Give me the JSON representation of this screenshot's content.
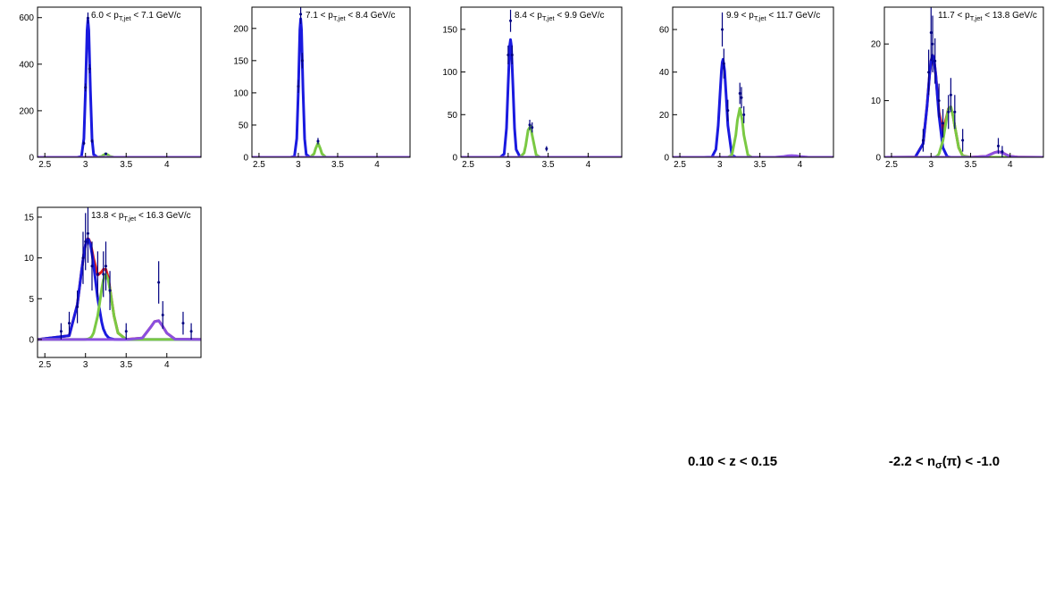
{
  "chart_data": [
    {
      "type": "line",
      "title": [
        "6.0 < p",
        "T,jet",
        " < 7.1 GeV/c"
      ],
      "x": [
        2.41,
        2.8,
        2.9,
        2.95,
        2.98,
        3.0,
        3.02,
        3.03,
        3.04,
        3.06,
        3.08,
        3.1,
        3.15,
        3.2,
        3.22,
        3.25,
        3.28,
        3.3,
        3.35,
        3.4,
        3.5,
        3.7,
        3.8,
        3.85,
        3.9,
        3.95,
        4.0,
        4.1,
        4.42
      ],
      "xlim": [
        2.41,
        4.42
      ],
      "xticks": [
        2.5,
        3,
        3.5,
        4
      ],
      "ylim": [
        0,
        645
      ],
      "yticks": [
        0,
        200,
        400,
        600
      ],
      "series": [
        {
          "color": "#1a1adf",
          "values": [
            0,
            0,
            0,
            3.5,
            80,
            287,
            545,
            590,
            545,
            287,
            80,
            12,
            0,
            0,
            0,
            0,
            0,
            0,
            0,
            0,
            0,
            0,
            0,
            0,
            0,
            0,
            0,
            0,
            0
          ]
        },
        {
          "color": "#7ac943",
          "values": [
            0,
            0,
            0,
            0,
            0,
            0,
            0,
            0,
            0,
            0,
            0,
            0,
            0,
            3.7,
            9.1,
            15,
            9.1,
            3.7,
            0,
            0,
            0,
            0,
            0,
            0,
            0,
            0,
            0,
            0,
            0
          ]
        },
        {
          "color": "#8a4fe0",
          "values": [
            0,
            0,
            0,
            0,
            0,
            0,
            0,
            0,
            0,
            0,
            0,
            0,
            0,
            0,
            0,
            0,
            0,
            0,
            0,
            0,
            0,
            0,
            0,
            0,
            0,
            0,
            0,
            0,
            0
          ]
        }
      ],
      "points": {
        "color": "#000080",
        "x": [
          2.98,
          3.0,
          3.03,
          3.05,
          3.08,
          3.25
        ],
        "values": [
          60,
          300,
          598,
          380,
          70,
          15
        ],
        "errors": [
          8,
          17,
          24,
          19,
          8,
          4
        ]
      }
    },
    {
      "type": "line",
      "title": [
        "7.1 < p",
        "T,jet",
        " < 8.4 GeV/c"
      ],
      "x": [
        2.41,
        2.8,
        2.9,
        2.95,
        2.98,
        3.0,
        3.02,
        3.03,
        3.04,
        3.06,
        3.08,
        3.1,
        3.15,
        3.2,
        3.22,
        3.25,
        3.28,
        3.3,
        3.35,
        3.4,
        3.5,
        3.7,
        3.8,
        3.85,
        3.9,
        3.95,
        4.0,
        4.1,
        4.42
      ],
      "xlim": [
        2.41,
        4.42
      ],
      "xticks": [
        2.5,
        3,
        3.5,
        4
      ],
      "ylim": [
        0,
        233
      ],
      "yticks": [
        0,
        50,
        100,
        150,
        200
      ],
      "series": [
        {
          "color": "#1a1adf",
          "values": [
            0,
            0,
            0,
            1.3,
            29,
            105,
            198,
            215,
            198,
            105,
            29,
            4.3,
            0,
            0,
            0,
            0,
            0,
            0,
            0,
            0,
            0,
            0,
            0,
            0,
            0,
            0,
            0,
            0,
            0
          ]
        },
        {
          "color": "#7ac943",
          "values": [
            0,
            0,
            0,
            0,
            0,
            0,
            0,
            0,
            0,
            0,
            0,
            0,
            0,
            5.5,
            13.4,
            22,
            13.4,
            5.5,
            0,
            0,
            0,
            0,
            0,
            0,
            0,
            0,
            0,
            0,
            0
          ]
        },
        {
          "color": "#8a4fe0",
          "values": [
            0,
            0,
            0,
            0,
            0,
            0,
            0,
            0,
            0,
            0,
            0,
            0,
            0,
            0,
            0,
            0,
            0,
            0,
            0,
            0,
            0,
            0,
            0,
            0,
            0,
            0,
            0,
            0,
            0
          ]
        }
      ],
      "points": {
        "color": "#000080",
        "x": [
          3.0,
          3.03,
          3.05,
          3.25
        ],
        "values": [
          110,
          222,
          150,
          25
        ],
        "errors": [
          10,
          15,
          12,
          5
        ]
      }
    },
    {
      "type": "line",
      "title": [
        "8.4 < p",
        "T,jet",
        " < 9.9 GeV/c"
      ],
      "x": [
        2.41,
        2.8,
        2.9,
        2.95,
        2.98,
        3.0,
        3.02,
        3.03,
        3.04,
        3.06,
        3.08,
        3.1,
        3.15,
        3.2,
        3.22,
        3.25,
        3.28,
        3.3,
        3.35,
        3.4,
        3.5,
        3.7,
        3.8,
        3.85,
        3.9,
        3.95,
        4.0,
        4.1,
        4.42
      ],
      "xlim": [
        2.41,
        4.42
      ],
      "xticks": [
        2.5,
        3,
        3.5,
        4
      ],
      "ylim": [
        0,
        176
      ],
      "yticks": [
        0,
        50,
        100,
        150
      ],
      "series": [
        {
          "color": "#1a1adf",
          "values": [
            0,
            0,
            0,
            3.9,
            34,
            84,
            131,
            138,
            131,
            84,
            34,
            9.1,
            0,
            0,
            0,
            0,
            0,
            0,
            0,
            0,
            0,
            0,
            0,
            0,
            0,
            0,
            0,
            0,
            0
          ]
        },
        {
          "color": "#7ac943",
          "values": [
            0,
            0,
            0,
            0,
            0,
            0,
            0,
            0,
            0,
            0,
            0,
            0,
            0.1,
            5.1,
            13.7,
            32,
            36.5,
            26,
            2.8,
            0,
            0,
            0,
            0,
            0,
            0,
            0,
            0,
            0,
            0
          ]
        },
        {
          "color": "#8a4fe0",
          "values": [
            0,
            0,
            0,
            0,
            0,
            0,
            0,
            0,
            0,
            0,
            0,
            0,
            0,
            0,
            0,
            0,
            0,
            0,
            0,
            0,
            0,
            0,
            0,
            0,
            0,
            0,
            0,
            0,
            0
          ]
        }
      ],
      "points": {
        "color": "#000080",
        "x": [
          3.0,
          3.03,
          3.05,
          3.27,
          3.3,
          3.48
        ],
        "values": [
          120,
          160,
          120,
          38,
          35,
          10
        ],
        "errors": [
          11,
          13,
          11,
          6,
          6,
          3
        ]
      }
    },
    {
      "type": "line",
      "title": [
        "9.9 < p",
        "T,jet",
        " < 11.7 GeV/c"
      ],
      "x": [
        2.41,
        2.8,
        2.9,
        2.95,
        2.98,
        3.0,
        3.02,
        3.03,
        3.04,
        3.06,
        3.08,
        3.1,
        3.15,
        3.2,
        3.22,
        3.25,
        3.28,
        3.3,
        3.35,
        3.4,
        3.5,
        3.7,
        3.8,
        3.85,
        3.9,
        3.95,
        4.0,
        4.1,
        4.42
      ],
      "xlim": [
        2.41,
        4.42
      ],
      "xticks": [
        2.5,
        3,
        3.5,
        4
      ],
      "ylim": [
        0,
        70.5
      ],
      "yticks": [
        0,
        20,
        40,
        60
      ],
      "series": [
        {
          "color": "#1a1adf",
          "values": [
            0,
            0,
            0.1,
            3.7,
            15,
            28,
            40.6,
            44.6,
            46,
            40.6,
            28,
            15,
            1.0,
            0,
            0,
            0,
            0,
            0,
            0,
            0,
            0,
            0,
            0,
            0,
            0,
            0,
            0,
            0,
            0
          ]
        },
        {
          "color": "#7ac943",
          "values": [
            0,
            0,
            0,
            0,
            0,
            0,
            0,
            0,
            0,
            0,
            0,
            0,
            1.0,
            10.5,
            17.4,
            23,
            17.4,
            10.5,
            1.0,
            0,
            0,
            0,
            0,
            0,
            0,
            0,
            0,
            0,
            0
          ]
        },
        {
          "color": "#8a4fe0",
          "values": [
            0,
            0,
            0,
            0,
            0,
            0,
            0,
            0,
            0,
            0,
            0,
            0,
            0,
            0,
            0,
            0,
            0,
            0,
            0,
            0,
            0,
            0.04,
            0.37,
            0.66,
            0.8,
            0.66,
            0.37,
            0.04,
            0
          ]
        }
      ],
      "points": {
        "color": "#000080",
        "x": [
          3.03,
          3.05,
          3.1,
          3.25,
          3.27,
          3.3
        ],
        "values": [
          60,
          44,
          22,
          30,
          28,
          20
        ],
        "errors": [
          8,
          7,
          5,
          5,
          5,
          4
        ]
      }
    },
    {
      "type": "line",
      "title": [
        "11.7 < p",
        "T,jet",
        " < 13.8 GeV/c"
      ],
      "x": [
        2.41,
        2.8,
        2.9,
        2.95,
        2.98,
        3.0,
        3.02,
        3.03,
        3.04,
        3.06,
        3.08,
        3.1,
        3.15,
        3.2,
        3.22,
        3.25,
        3.28,
        3.3,
        3.35,
        3.4,
        3.5,
        3.7,
        3.8,
        3.85,
        3.9,
        3.95,
        4.0,
        4.1,
        4.42
      ],
      "xlim": [
        2.41,
        4.42
      ],
      "xticks": [
        2.5,
        3,
        3.5,
        4
      ],
      "ylim": [
        0,
        26.5
      ],
      "yticks": [
        0,
        10,
        20
      ],
      "series": [
        {
          "color": "#e0201a",
          "values": [
            0,
            0.02,
            2.4,
            9.1,
            14.4,
            17,
            18,
            17.7,
            17,
            14.5,
            11.15,
            8.0,
            4.6,
            7.4,
            8.57,
            8.9,
            7.2,
            5.5,
            1.7,
            0.25,
            0,
            0.17,
            0.82,
            1,
            0.82,
            0.46,
            0.17,
            0.01,
            0
          ]
        },
        {
          "color": "#1a1adf",
          "values": [
            0,
            0.02,
            2.4,
            9.1,
            14.4,
            17,
            18,
            17.7,
            17,
            14.4,
            10.9,
            7.4,
            1.7,
            0.2,
            0.07,
            0,
            0,
            0,
            0,
            0,
            0,
            0,
            0,
            0,
            0,
            0,
            0,
            0,
            0
          ]
        },
        {
          "color": "#7ac943",
          "values": [
            0,
            0,
            0,
            0,
            0,
            0,
            0,
            0,
            0,
            0.1,
            0.25,
            0.6,
            2.9,
            7.2,
            8.5,
            8.9,
            7.2,
            5.5,
            1.7,
            0.25,
            0,
            0,
            0,
            0,
            0,
            0,
            0,
            0,
            0
          ]
        },
        {
          "color": "#8a4fe0",
          "values": [
            0,
            0,
            0,
            0,
            0,
            0,
            0,
            0,
            0,
            0,
            0,
            0,
            0,
            0,
            0,
            0,
            0,
            0,
            0,
            0,
            0,
            0.17,
            0.82,
            1,
            0.82,
            0.46,
            0.17,
            0.01,
            0
          ]
        }
      ],
      "points": {
        "color": "#000080",
        "x": [
          2.9,
          2.97,
          3.0,
          3.02,
          3.05,
          3.1,
          3.15,
          3.22,
          3.25,
          3.3,
          3.4,
          3.85,
          3.9
        ],
        "values": [
          3,
          15,
          22,
          20,
          17,
          10,
          6,
          8,
          11,
          8,
          3,
          2,
          1
        ],
        "errors": [
          2,
          4,
          5,
          5,
          4,
          3,
          2.5,
          3,
          3,
          3,
          2,
          1.4,
          1
        ]
      }
    },
    {
      "type": "line",
      "title": [
        "13.8 < p",
        "T,jet",
        " < 16.3 GeV/c"
      ],
      "x": [
        2.41,
        2.8,
        2.9,
        2.95,
        2.98,
        3.0,
        3.02,
        3.03,
        3.04,
        3.06,
        3.08,
        3.1,
        3.15,
        3.2,
        3.22,
        3.25,
        3.28,
        3.3,
        3.35,
        3.4,
        3.5,
        3.7,
        3.8,
        3.85,
        3.9,
        3.95,
        4.0,
        4.1,
        4.42
      ],
      "xlim": [
        2.41,
        4.42
      ],
      "xticks": [
        2.5,
        3,
        3.5,
        4
      ],
      "ylim": [
        -2.2,
        16.2
      ],
      "yticks": [
        0,
        5,
        10,
        15
      ],
      "series": [
        {
          "color": "#e0201a",
          "values": [
            0,
            0.47,
            4.3,
            8.3,
            10.5,
            11.6,
            12.25,
            12.37,
            12.3,
            11.8,
            10.9,
            9.9,
            7.9,
            8.3,
            8.6,
            8.6,
            7.6,
            6.3,
            2.9,
            0.8,
            0.01,
            0.19,
            1.5,
            2.2,
            2.3,
            1.6,
            0.78,
            0.05,
            0
          ]
        },
        {
          "color": "#1a1adf",
          "values": [
            0,
            0.47,
            4.3,
            8.3,
            10.5,
            11.6,
            12.2,
            12.3,
            12.2,
            11.6,
            10.5,
            9.1,
            5.0,
            2.1,
            1.3,
            0.62,
            0.26,
            0.14,
            0.02,
            0,
            0,
            0,
            0,
            0,
            0,
            0,
            0,
            0,
            0
          ]
        },
        {
          "color": "#7ac943",
          "values": [
            0,
            0,
            0,
            0,
            0,
            0.01,
            0.05,
            0.07,
            0.1,
            0.2,
            0.42,
            0.8,
            2.9,
            6.2,
            7.3,
            8,
            7.3,
            6.2,
            2.9,
            0.8,
            0.01,
            0,
            0,
            0,
            0,
            0,
            0,
            0,
            0
          ]
        },
        {
          "color": "#8a4fe0",
          "values": [
            0,
            0,
            0,
            0,
            0,
            0,
            0,
            0,
            0,
            0,
            0,
            0,
            0,
            0,
            0,
            0,
            0,
            0,
            0,
            0,
            0,
            0.19,
            1.5,
            2.2,
            2.3,
            1.6,
            0.78,
            0.05,
            0
          ]
        }
      ],
      "points": {
        "color": "#000080",
        "x": [
          2.7,
          2.8,
          2.9,
          2.97,
          3.0,
          3.03,
          3.08,
          3.15,
          3.22,
          3.25,
          3.3,
          3.5,
          3.9,
          3.95,
          4.2,
          4.3
        ],
        "values": [
          1,
          2,
          4,
          10,
          12,
          13,
          9,
          8,
          8,
          9,
          6,
          1,
          7,
          3,
          2,
          1
        ],
        "errors": [
          1,
          1.4,
          2,
          3.2,
          3.5,
          3.6,
          3,
          2.8,
          2.8,
          3,
          2.4,
          1,
          2.6,
          1.7,
          1.4,
          1
        ]
      }
    }
  ],
  "annotations": [
    [
      "0.10 < z < 0.15"
    ],
    [
      "-2.2 < n",
      "σ",
      "(π) < -1.0"
    ]
  ]
}
